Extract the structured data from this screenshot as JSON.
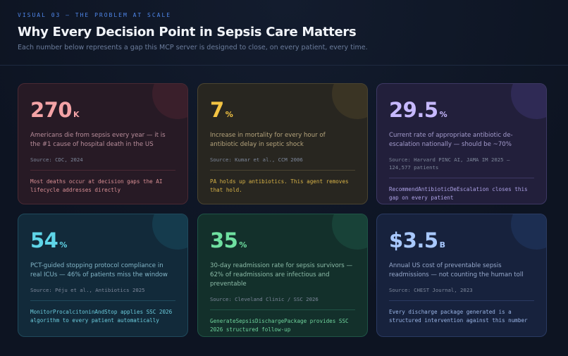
{
  "header": {
    "eyebrow": "VISUAL 03 — THE PROBLEM AT SCALE",
    "title": "Why Every Decision Point in Sepsis Care Matters",
    "subtitle": "Each number below represents a gap this MCP server is designed to close, on every patient, every time."
  },
  "cards": [
    {
      "value": "270",
      "unit": "K",
      "description": "Americans die from sepsis every year — it is the #1 cause of hospital death in the US",
      "source": "Source: CDC, 2024",
      "note": "Most deaths occur at decision gaps the AI lifecycle addresses directly"
    },
    {
      "value": "7",
      "unit": "%",
      "description": "Increase in mortality for every hour of antibiotic delay in septic shock",
      "source": "Source: Kumar et al., CCM 2006",
      "note": "PA holds up antibiotics. This agent removes that hold."
    },
    {
      "value": "29.5",
      "unit": "%",
      "description": "Current rate of appropriate antibiotic de-escalation nationally — should be ~70%",
      "source": "Source: Harvard PINC AI, JAMA IM 2025 — 124,577 patients",
      "note": "RecommendAntibioticDeEscalation closes this gap on every patient"
    },
    {
      "value": "54",
      "unit": "%",
      "description": "PCT-guided stopping protocol compliance in real ICUs — 46% of patients miss the window",
      "source": "Source: Péju et al., Antibiotics 2025",
      "note": "MonitorProcalcitoninAndStop applies SSC 2026 algorithm to every patient automatically"
    },
    {
      "value": "35",
      "unit": "%",
      "description": "30-day readmission rate for sepsis survivors — 62% of readmissions are infectious and preventable",
      "source": "Source: Cleveland Clinic / SSC 2026",
      "note": "GenerateSepsisDischargePackage provides SSC 2026 structured follow-up"
    },
    {
      "value": "$3.5",
      "unit": "B",
      "description": "Annual US cost of preventable sepsis readmissions — not counting the human toll",
      "source": "Source: CHEST Journal, 2023",
      "note": "Every discharge package generated is a structured intervention against this number"
    }
  ]
}
